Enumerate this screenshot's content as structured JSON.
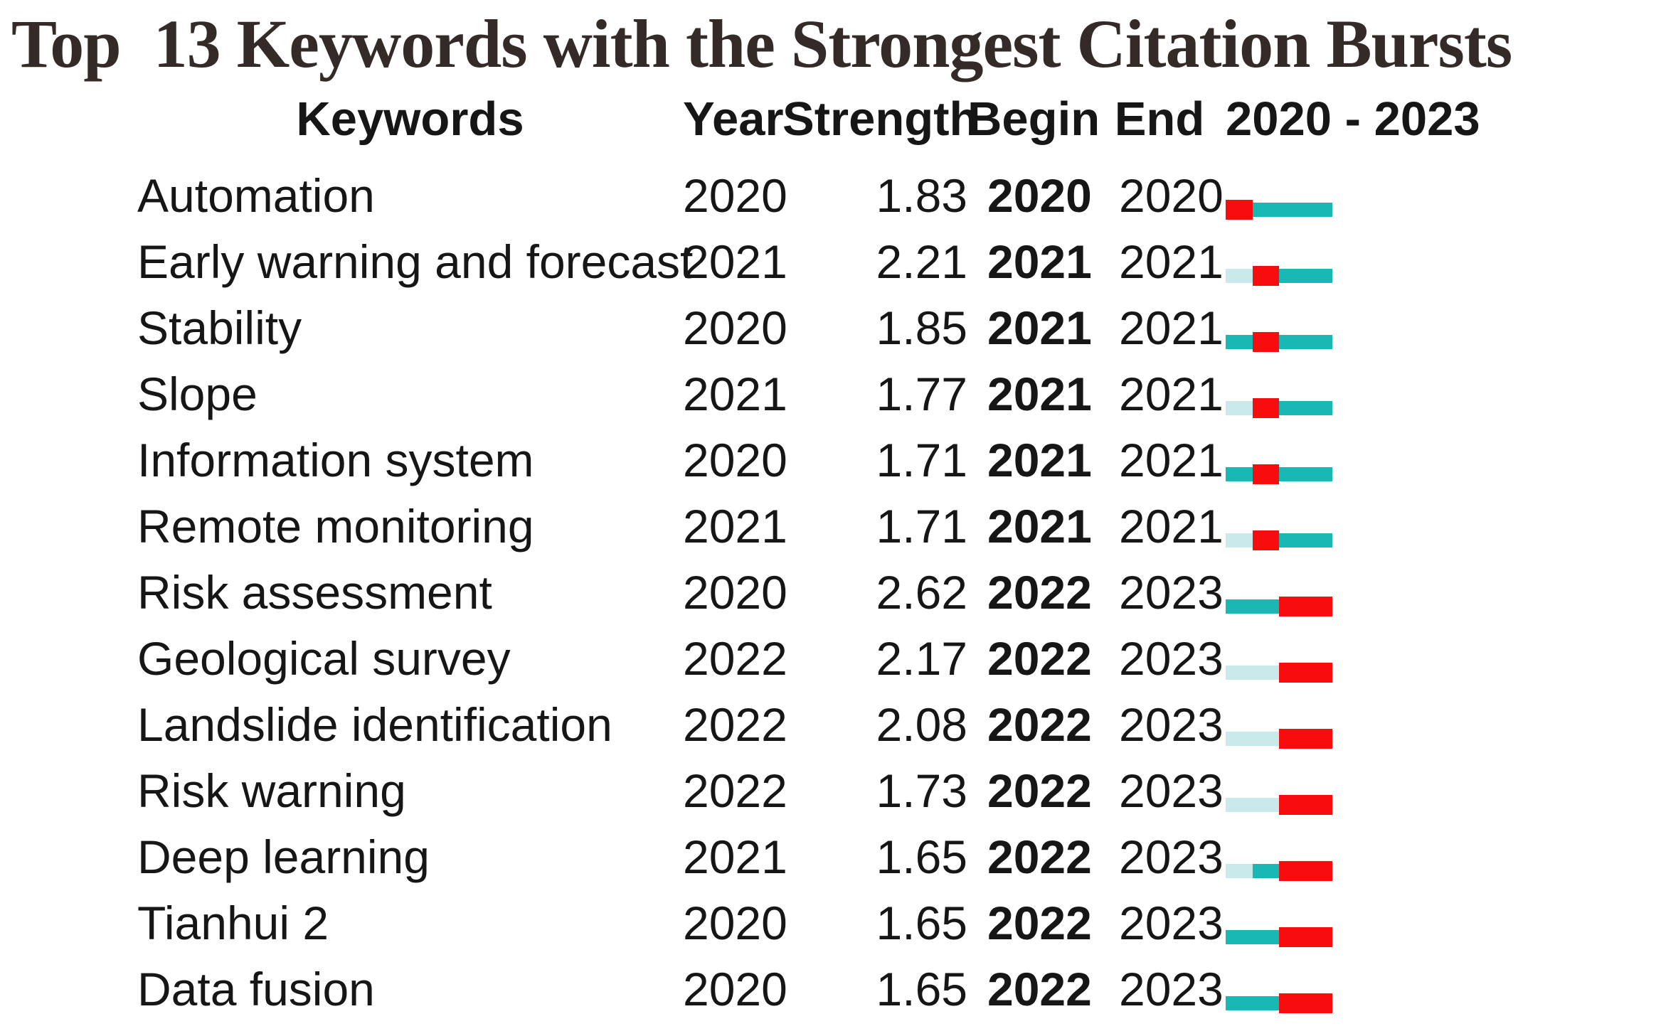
{
  "title": "Top  13 Keywords with the Strongest Citation Bursts",
  "columns": {
    "keywords": "Keywords",
    "year": "Year",
    "strength": "Strength",
    "begin": "Begin",
    "end": "End",
    "range": "2020 - 2023"
  },
  "colors": {
    "burst": "#f70d0e",
    "active": "#1ab8b4",
    "inactive": "#c9e9ea"
  },
  "legend_semantics": {
    "burst": "burst period (red)",
    "active": "keyword present, no burst (teal)",
    "inactive": "before keyword appearance (pale blue)"
  },
  "chart_data": {
    "type": "table",
    "title": "Top 13 Keywords with the Strongest Citation Bursts",
    "timeline_years": [
      2020,
      2021,
      2022,
      2023
    ],
    "columns": [
      "Keywords",
      "Year",
      "Strength",
      "Begin",
      "End",
      "2020 - 2023"
    ],
    "rows": [
      {
        "keyword": "Automation",
        "year": "2020",
        "strength": "1.83",
        "begin": "2020",
        "end": "2020",
        "segments": [
          "burst",
          "active",
          "active",
          "active"
        ]
      },
      {
        "keyword": "Early warning and forecast",
        "year": "2021",
        "strength": "2.21",
        "begin": "2021",
        "end": "2021",
        "segments": [
          "inactive",
          "burst",
          "active",
          "active"
        ]
      },
      {
        "keyword": "Stability",
        "year": "2020",
        "strength": "1.85",
        "begin": "2021",
        "end": "2021",
        "segments": [
          "active",
          "burst",
          "active",
          "active"
        ]
      },
      {
        "keyword": "Slope",
        "year": "2021",
        "strength": "1.77",
        "begin": "2021",
        "end": "2021",
        "segments": [
          "inactive",
          "burst",
          "active",
          "active"
        ]
      },
      {
        "keyword": "Information system",
        "year": "2020",
        "strength": "1.71",
        "begin": "2021",
        "end": "2021",
        "segments": [
          "active",
          "burst",
          "active",
          "active"
        ]
      },
      {
        "keyword": "Remote monitoring",
        "year": "2021",
        "strength": "1.71",
        "begin": "2021",
        "end": "2021",
        "segments": [
          "inactive",
          "burst",
          "active",
          "active"
        ]
      },
      {
        "keyword": "Risk assessment",
        "year": "2020",
        "strength": "2.62",
        "begin": "2022",
        "end": "2023",
        "segments": [
          "active",
          "active",
          "burst",
          "burst"
        ]
      },
      {
        "keyword": "Geological survey",
        "year": "2022",
        "strength": "2.17",
        "begin": "2022",
        "end": "2023",
        "segments": [
          "inactive",
          "inactive",
          "burst",
          "burst"
        ]
      },
      {
        "keyword": "Landslide identification",
        "year": "2022",
        "strength": "2.08",
        "begin": "2022",
        "end": "2023",
        "segments": [
          "inactive",
          "inactive",
          "burst",
          "burst"
        ]
      },
      {
        "keyword": "Risk warning",
        "year": "2022",
        "strength": "1.73",
        "begin": "2022",
        "end": "2023",
        "segments": [
          "inactive",
          "inactive",
          "burst",
          "burst"
        ]
      },
      {
        "keyword": "Deep learning",
        "year": "2021",
        "strength": "1.65",
        "begin": "2022",
        "end": "2023",
        "segments": [
          "inactive",
          "active",
          "burst",
          "burst"
        ]
      },
      {
        "keyword": "Tianhui 2",
        "year": "2020",
        "strength": "1.65",
        "begin": "2022",
        "end": "2023",
        "segments": [
          "active",
          "active",
          "burst",
          "burst"
        ]
      },
      {
        "keyword": "Data fusion",
        "year": "2020",
        "strength": "1.65",
        "begin": "2022",
        "end": "2023",
        "segments": [
          "active",
          "active",
          "burst",
          "burst"
        ]
      }
    ]
  }
}
